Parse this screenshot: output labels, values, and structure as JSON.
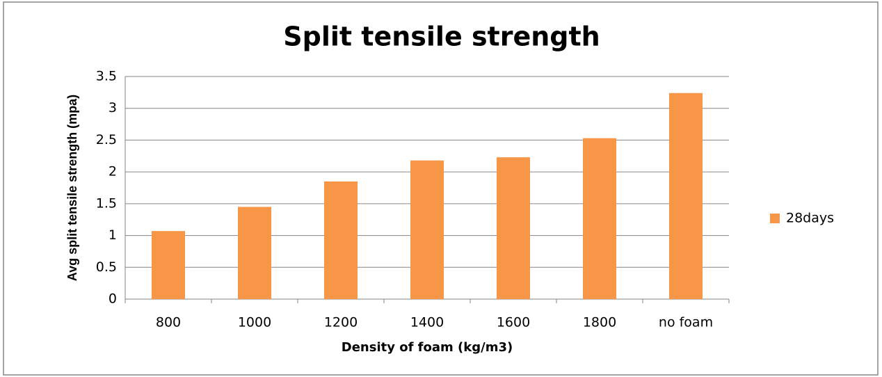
{
  "chart_data": {
    "type": "bar",
    "title": "Split tensile strength",
    "x_label": "Density of foam (kg/m3)",
    "y_label": "Avg split tensile strength (mpa)",
    "categories": [
      "800",
      "1000",
      "1200",
      "1400",
      "1600",
      "1800",
      "no foam"
    ],
    "series": [
      {
        "name": "28days",
        "color": "#f79646",
        "values": [
          1.07,
          1.45,
          1.85,
          2.18,
          2.23,
          2.53,
          3.24
        ]
      }
    ],
    "ylim": [
      0,
      3.5
    ],
    "yticks": [
      0,
      0.5,
      1,
      1.5,
      2,
      2.5,
      3,
      3.5
    ],
    "grid": true,
    "legend": "right"
  }
}
